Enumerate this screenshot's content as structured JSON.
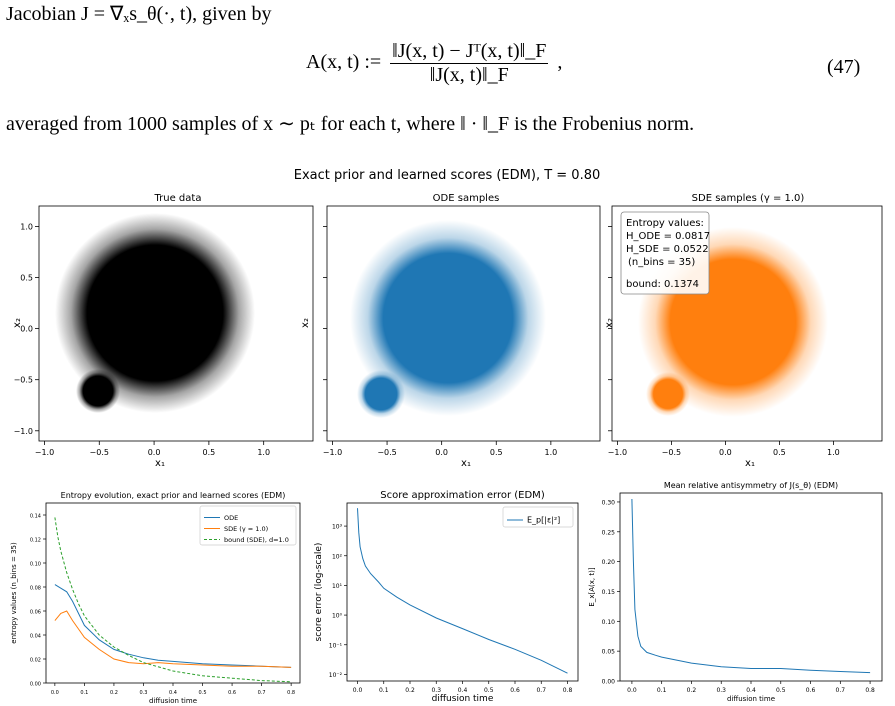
{
  "text": {
    "intro": "Jacobian J = ∇ₓs_θ(·, t), given by",
    "formula_lhs": "A(x, t) :=",
    "formula_num": "‖J(x, t) − Jᵀ(x, t)‖_F",
    "formula_den": "‖J(x, t)‖_F",
    "formula_comma": ",",
    "eq_number": "(47)",
    "after": "averaged from 1000 samples of x ∼ pₜ for each t, where ‖ · ‖_F is the Frobenius norm."
  },
  "figure": {
    "suptitle": "Exact prior and learned scores (EDM), T = 0.80",
    "scatter_panels": [
      {
        "title": "True data",
        "xlabel": "x₁",
        "ylabel": "x₂",
        "color": "#000000"
      },
      {
        "title": "ODE samples",
        "xlabel": "x₁",
        "ylabel": "x₂",
        "color": "#1f77b4"
      },
      {
        "title": "SDE samples (γ = 1.0)",
        "xlabel": "x₁",
        "ylabel": "x₂",
        "color": "#ff7f0e"
      }
    ],
    "entropy_box": {
      "line1": "Entropy values:",
      "line2": "H_ODE = 0.0817",
      "line3": "H_SDE = 0.0522",
      "line4": "(n_bins = 35)",
      "line5": "bound: 0.1374"
    },
    "scatter_xticks": [
      "−1.0",
      "−0.5",
      "0.0",
      "0.5",
      "1.0"
    ],
    "scatter_yticks": [
      "1.0",
      "0.5",
      "0.0",
      "−0.5",
      "−1.0"
    ]
  },
  "chart_data": [
    {
      "type": "line",
      "title": "Entropy evolution, exact prior and learned scores (EDM)",
      "xlabel": "diffusion time",
      "ylabel": "entropy values (n_bins = 35)",
      "xlim": [
        -0.03,
        0.83
      ],
      "ylim": [
        0.0,
        0.15
      ],
      "xticks": [
        "0.0",
        "0.1",
        "0.2",
        "0.3",
        "0.4",
        "0.5",
        "0.6",
        "0.7",
        "0.8"
      ],
      "yticks": [
        "0.00",
        "0.02",
        "0.04",
        "0.06",
        "0.08",
        "0.10",
        "0.12",
        "0.14"
      ],
      "legend_position": "top-right",
      "series": [
        {
          "name": "ODE",
          "color": "#1f77b4",
          "style": "solid",
          "x": [
            0.0,
            0.02,
            0.04,
            0.06,
            0.08,
            0.1,
            0.15,
            0.2,
            0.25,
            0.3,
            0.35,
            0.4,
            0.5,
            0.6,
            0.7,
            0.8
          ],
          "y": [
            0.082,
            0.079,
            0.076,
            0.068,
            0.058,
            0.048,
            0.036,
            0.028,
            0.024,
            0.021,
            0.019,
            0.018,
            0.016,
            0.015,
            0.014,
            0.013
          ]
        },
        {
          "name": "SDE (γ = 1.0)",
          "color": "#ff7f0e",
          "style": "solid",
          "x": [
            0.0,
            0.02,
            0.04,
            0.06,
            0.08,
            0.1,
            0.15,
            0.2,
            0.25,
            0.3,
            0.35,
            0.4,
            0.5,
            0.6,
            0.7,
            0.8
          ],
          "y": [
            0.052,
            0.058,
            0.06,
            0.052,
            0.045,
            0.038,
            0.028,
            0.02,
            0.017,
            0.016,
            0.017,
            0.016,
            0.015,
            0.014,
            0.014,
            0.013
          ]
        },
        {
          "name": "bound (SDE), d=1.0",
          "color": "#2ca02c",
          "style": "dashed",
          "x": [
            0.0,
            0.01,
            0.02,
            0.04,
            0.06,
            0.08,
            0.1,
            0.15,
            0.2,
            0.25,
            0.3,
            0.4,
            0.5,
            0.6,
            0.7,
            0.8
          ],
          "y": [
            0.138,
            0.122,
            0.11,
            0.092,
            0.078,
            0.066,
            0.056,
            0.04,
            0.03,
            0.023,
            0.017,
            0.01,
            0.006,
            0.004,
            0.002,
            0.001
          ]
        }
      ]
    },
    {
      "type": "line",
      "title": "Score approximation error (EDM)",
      "xlabel": "diffusion time",
      "ylabel": "score error (log-scale)",
      "yscale": "log",
      "xlim": [
        -0.04,
        0.84
      ],
      "ylim": [
        0.006,
        6000
      ],
      "xticks": [
        "0.0",
        "0.1",
        "0.2",
        "0.3",
        "0.4",
        "0.5",
        "0.6",
        "0.7",
        "0.8"
      ],
      "yticks": [
        "10⁻²",
        "10⁻¹",
        "10⁰",
        "10¹",
        "10²",
        "10³"
      ],
      "legend_position": "top-right",
      "series": [
        {
          "name": "E_p[|ε|²]",
          "color": "#1f77b4",
          "x": [
            0.0,
            0.005,
            0.01,
            0.02,
            0.03,
            0.05,
            0.08,
            0.1,
            0.15,
            0.2,
            0.3,
            0.4,
            0.5,
            0.6,
            0.7,
            0.8
          ],
          "y": [
            4000,
            600,
            200,
            80,
            45,
            25,
            13,
            8,
            4,
            2.2,
            0.8,
            0.35,
            0.15,
            0.07,
            0.03,
            0.011
          ]
        }
      ]
    },
    {
      "type": "line",
      "title": "Mean relative antisymmetry of J(s_θ) (EDM)",
      "xlabel": "diffusion time",
      "ylabel": "E_x[A(x, t)]",
      "xlim": [
        -0.04,
        0.84
      ],
      "ylim": [
        0.0,
        0.315
      ],
      "xticks": [
        "0.0",
        "0.1",
        "0.2",
        "0.3",
        "0.4",
        "0.5",
        "0.6",
        "0.7",
        "0.8"
      ],
      "yticks": [
        "0.00",
        "0.05",
        "0.10",
        "0.15",
        "0.20",
        "0.25",
        "0.30"
      ],
      "series": [
        {
          "name": "",
          "color": "#1f77b4",
          "x": [
            0.0,
            0.005,
            0.01,
            0.02,
            0.03,
            0.05,
            0.08,
            0.1,
            0.15,
            0.2,
            0.3,
            0.4,
            0.5,
            0.6,
            0.7,
            0.8
          ],
          "y": [
            0.305,
            0.2,
            0.12,
            0.075,
            0.058,
            0.048,
            0.043,
            0.04,
            0.035,
            0.03,
            0.024,
            0.021,
            0.021,
            0.018,
            0.016,
            0.014
          ]
        }
      ]
    }
  ]
}
